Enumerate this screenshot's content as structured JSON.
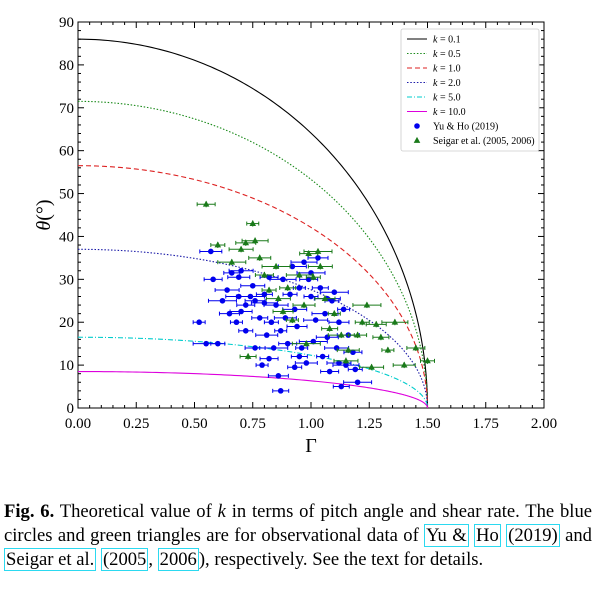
{
  "chart_data": {
    "type": "scatter",
    "xlabel": "Γ",
    "ylabel": "θ(°)",
    "xlim": [
      0,
      2
    ],
    "ylim": [
      0,
      90
    ],
    "x_ticks": [
      "0.00",
      "0.25",
      "0.50",
      "0.75",
      "1.00",
      "1.25",
      "1.50",
      "1.75",
      "2.00"
    ],
    "y_ticks": [
      "0",
      "10",
      "20",
      "30",
      "40",
      "50",
      "60",
      "70",
      "80",
      "90"
    ],
    "legend_position": "top-right",
    "lines": [
      {
        "name": "k = 0.1",
        "k_label": "k",
        "k_value": "= 0.1",
        "color": "#000000",
        "dash": "",
        "theta0": 86.0
      },
      {
        "name": "k = 0.5",
        "k_label": "k",
        "k_value": "= 0.5",
        "color": "#1a8a1a",
        "dash": "1.5,1.8",
        "theta0": 71.5
      },
      {
        "name": "k = 1.0",
        "k_label": "k",
        "k_value": "= 1.0",
        "color": "#dd2222",
        "dash": "5,3",
        "theta0": 56.5
      },
      {
        "name": "k = 2.0",
        "k_label": "k",
        "k_value": "= 2.0",
        "color": "#1a1aa8",
        "dash": "1.5,1.8",
        "theta0": 37.0
      },
      {
        "name": "k = 5.0",
        "k_label": "k",
        "k_value": "= 5.0",
        "color": "#00cccc",
        "dash": "5,2,1,2",
        "theta0": 16.5
      },
      {
        "name": "k = 10.0",
        "k_label": "k",
        "k_value": "= 10.0",
        "color": "#dd00dd",
        "dash": "",
        "theta0": 8.5
      }
    ],
    "series": [
      {
        "name": "Yu & Ho (2019)",
        "marker": "circle",
        "color": "#0000ee",
        "points": [
          [
            0.52,
            20.0
          ],
          [
            0.55,
            15.0
          ],
          [
            0.57,
            36.5
          ],
          [
            0.58,
            30.0
          ],
          [
            0.6,
            15.0
          ],
          [
            0.62,
            25.0
          ],
          [
            0.64,
            27.5
          ],
          [
            0.65,
            22.0
          ],
          [
            0.66,
            31.5
          ],
          [
            0.68,
            20.0
          ],
          [
            0.69,
            26.0
          ],
          [
            0.7,
            22.5
          ],
          [
            0.72,
            24.0
          ],
          [
            0.72,
            18.0
          ],
          [
            0.74,
            26.0
          ],
          [
            0.75,
            28.5
          ],
          [
            0.76,
            14.0
          ],
          [
            0.78,
            21.0
          ],
          [
            0.79,
            10.0
          ],
          [
            0.8,
            24.5
          ],
          [
            0.81,
            17.0
          ],
          [
            0.82,
            30.5
          ],
          [
            0.83,
            20.0
          ],
          [
            0.84,
            14.0
          ],
          [
            0.85,
            24.0
          ],
          [
            0.86,
            7.5
          ],
          [
            0.87,
            4.0
          ],
          [
            0.87,
            18.0
          ],
          [
            0.88,
            30.0
          ],
          [
            0.89,
            21.0
          ],
          [
            0.9,
            15.0
          ],
          [
            0.91,
            26.5
          ],
          [
            0.92,
            33.0
          ],
          [
            0.93,
            23.0
          ],
          [
            0.94,
            19.0
          ],
          [
            0.95,
            12.0
          ],
          [
            0.96,
            14.0
          ],
          [
            0.97,
            34.0
          ],
          [
            0.98,
            10.5
          ],
          [
            0.99,
            30.0
          ],
          [
            1.0,
            26.0
          ],
          [
            1.01,
            15.5
          ],
          [
            1.02,
            20.5
          ],
          [
            1.03,
            35.0
          ],
          [
            1.04,
            28.0
          ],
          [
            1.05,
            12.0
          ],
          [
            1.06,
            22.0
          ],
          [
            1.07,
            16.5
          ],
          [
            1.08,
            8.5
          ],
          [
            1.09,
            25.0
          ],
          [
            1.1,
            27.0
          ],
          [
            1.11,
            14.0
          ],
          [
            1.12,
            20.0
          ],
          [
            1.13,
            5.0
          ],
          [
            1.14,
            23.0
          ],
          [
            1.15,
            10.0
          ],
          [
            1.16,
            17.0
          ],
          [
            1.18,
            13.0
          ],
          [
            1.19,
            9.0
          ],
          [
            1.2,
            6.0
          ],
          [
            0.7,
            32.0
          ],
          [
            0.76,
            25.0
          ],
          [
            0.8,
            26.5
          ],
          [
            0.95,
            28.0
          ],
          [
            1.07,
            25.5
          ],
          [
            0.69,
            30.5
          ],
          [
            0.82,
            11.5
          ],
          [
            0.93,
            9.5
          ],
          [
            1.0,
            31.5
          ],
          [
            1.12,
            10.5
          ]
        ]
      },
      {
        "name": "Seigar et al. (2005, 2006)",
        "marker": "triangle",
        "color": "#1a7a1a",
        "points": [
          [
            0.55,
            47.5
          ],
          [
            0.6,
            38.0
          ],
          [
            0.66,
            34.0
          ],
          [
            0.7,
            37.0
          ],
          [
            0.72,
            38.5
          ],
          [
            0.73,
            12.0
          ],
          [
            0.75,
            43.0
          ],
          [
            0.76,
            39.0
          ],
          [
            0.78,
            35.0
          ],
          [
            0.8,
            31.0
          ],
          [
            0.82,
            27.5
          ],
          [
            0.85,
            33.0
          ],
          [
            0.86,
            25.5
          ],
          [
            0.88,
            22.5
          ],
          [
            0.9,
            28.0
          ],
          [
            0.92,
            20.5
          ],
          [
            0.95,
            31.0
          ],
          [
            0.97,
            24.0
          ],
          [
            0.99,
            36.0
          ],
          [
            1.01,
            30.5
          ],
          [
            1.03,
            36.5
          ],
          [
            1.04,
            33.0
          ],
          [
            1.06,
            25.5
          ],
          [
            1.08,
            18.5
          ],
          [
            1.1,
            22.0
          ],
          [
            1.13,
            17.0
          ],
          [
            1.16,
            13.5
          ],
          [
            1.2,
            17.0
          ],
          [
            1.22,
            20.0
          ],
          [
            1.24,
            24.0
          ],
          [
            1.26,
            9.5
          ],
          [
            1.28,
            19.5
          ],
          [
            1.3,
            16.5
          ],
          [
            1.33,
            13.5
          ],
          [
            1.36,
            20.0
          ],
          [
            1.4,
            10.0
          ],
          [
            1.45,
            14.0
          ],
          [
            1.5,
            11.0
          ],
          [
            0.98,
            15.0
          ],
          [
            1.15,
            11.0
          ]
        ]
      }
    ]
  },
  "caption": {
    "label": "Fig. 6.",
    "p1": " Theoretical value of ",
    "k": "k",
    "p2": " in terms of pitch angle and shear rate. The blue circles and green triangles are for observational data of ",
    "cite1a": "Yu &",
    "cite1b": "Ho",
    "p3": " ",
    "cite1c": "(2019)",
    "p4": " and ",
    "cite2a": "Seigar et al.",
    "p5": " ",
    "cite2b": "(2005",
    "p6": ", ",
    "cite2c": "2006",
    "p7": "), respectively. See the text for details."
  }
}
